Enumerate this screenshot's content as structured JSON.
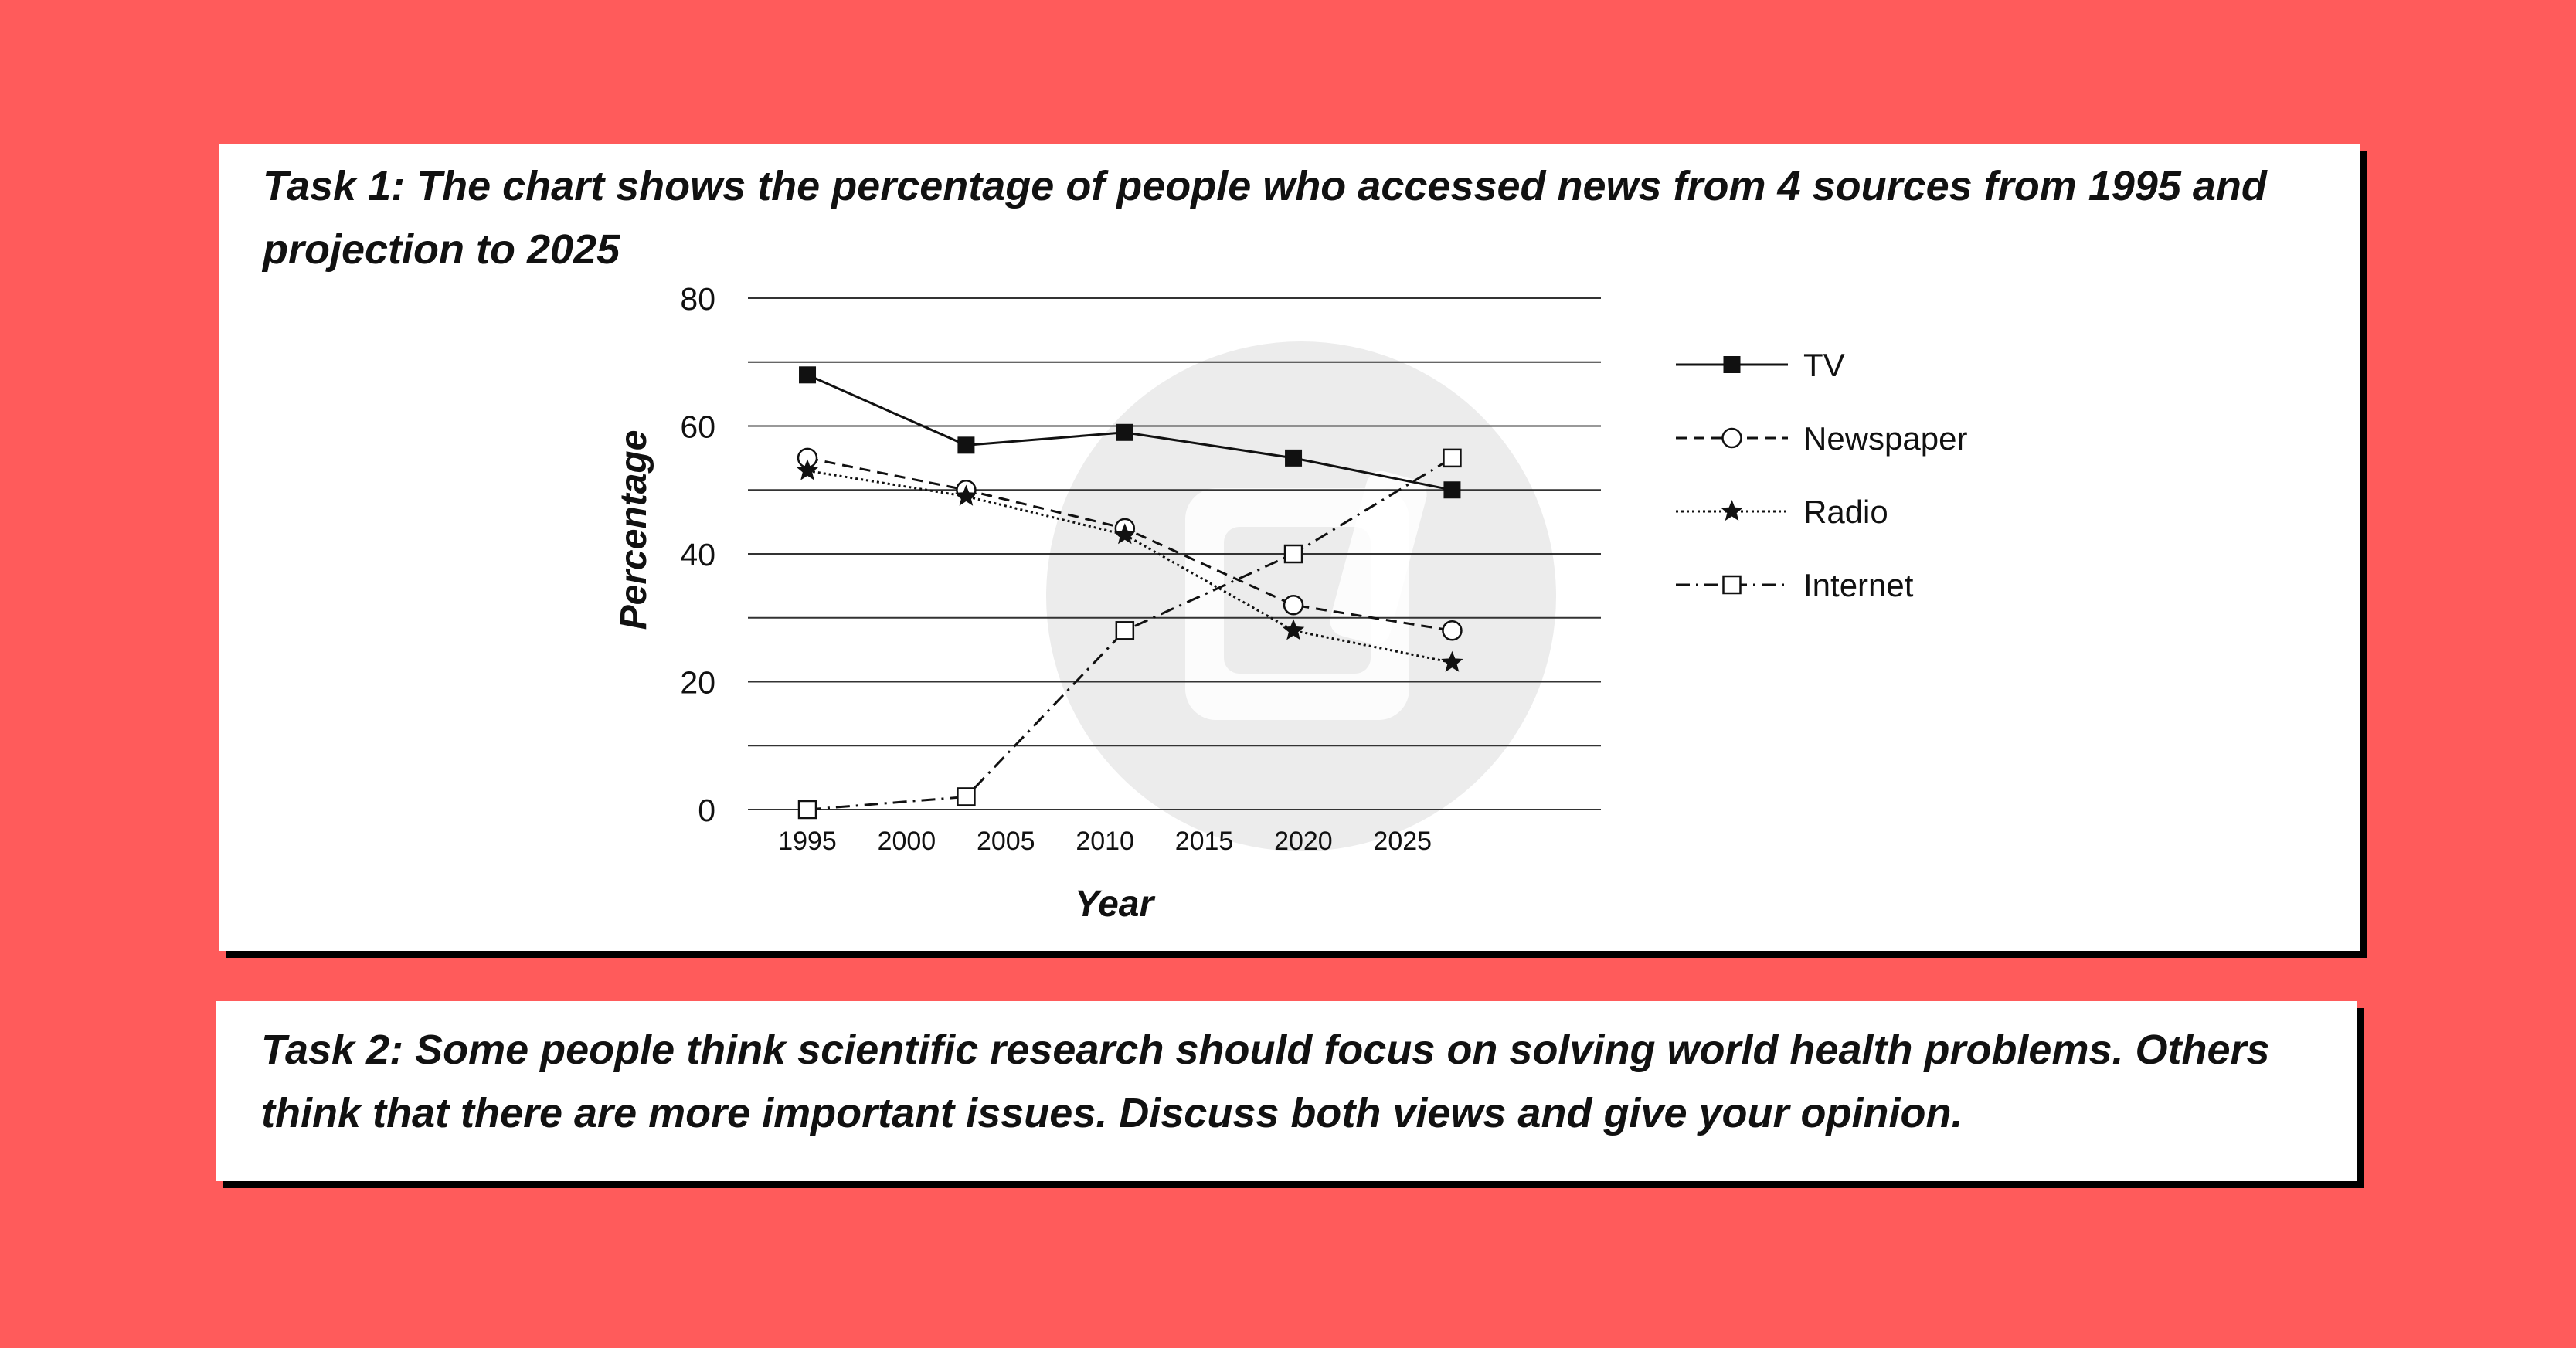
{
  "task1": {
    "text": "Task 1: The chart shows the percentage of people who accessed news from 4 sources from 1995 and projection to 2025"
  },
  "task2": {
    "text": "Task 2: Some people think scientific research should focus on solving world health problems. Others think that there are more important issues.  Discuss both views and give your opinion."
  },
  "colors": {
    "background": "#ff5b5b",
    "card": "#ffffff",
    "ink": "#111111",
    "grid": "#333333",
    "watermark": "#ececec"
  },
  "chart_data": {
    "type": "line",
    "title": "",
    "xlabel": "Year",
    "ylabel": "Percentage",
    "xlim": [
      1992,
      2035
    ],
    "ylim": [
      0,
      80
    ],
    "y_ticks": [
      0,
      20,
      40,
      60,
      80
    ],
    "x_ticks": [
      "1995",
      "2000",
      "2005",
      "2010",
      "2015",
      "2020",
      "2025"
    ],
    "grid": true,
    "legend_position": "right",
    "series": [
      {
        "name": "TV",
        "line_style": "solid",
        "marker": "filled-square",
        "x": [
          1995,
          2003,
          2011,
          2019.5,
          2027.5
        ],
        "values": [
          68,
          57,
          59,
          55,
          50
        ]
      },
      {
        "name": "Newspaper",
        "line_style": "dashed",
        "marker": "open-circle",
        "x": [
          1995,
          2003,
          2011,
          2019.5,
          2027.5
        ],
        "values": [
          55,
          50,
          44,
          32,
          28
        ]
      },
      {
        "name": "Radio",
        "line_style": "dotted",
        "marker": "filled-star",
        "x": [
          1995,
          2003,
          2011,
          2019.5,
          2027.5
        ],
        "values": [
          53,
          49,
          43,
          28,
          23
        ]
      },
      {
        "name": "Internet",
        "line_style": "dash-dot",
        "marker": "open-square",
        "x": [
          1995,
          2003,
          2011,
          2019.5,
          2027.5
        ],
        "values": [
          0,
          2,
          28,
          40,
          55
        ]
      }
    ]
  }
}
